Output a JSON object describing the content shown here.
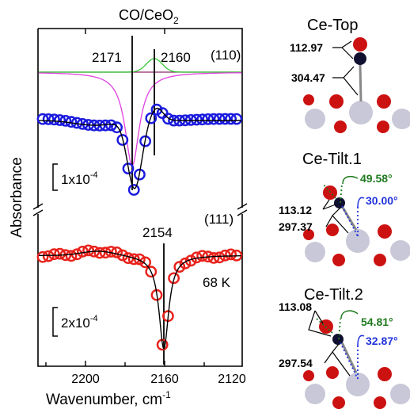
{
  "figure": {
    "title_main": "CO/CeO",
    "title_sub": "2",
    "ylabel": "Absorbance",
    "xlabel_main": "Wavenumber, cm",
    "xlabel_sup": "-1",
    "x_ticks": [
      "2200",
      "2160",
      "2120"
    ],
    "panel_110": {
      "label": "(110)",
      "line_left": "2171",
      "line_right": "2160",
      "scale_prefix": "1x10",
      "scale_exp": "-4"
    },
    "panel_111": {
      "label": "(111)",
      "line": "2154",
      "temperature": "68 K",
      "scale_prefix": "2x10",
      "scale_exp": "-4"
    },
    "structures": {
      "top": {
        "title": "Ce-Top",
        "bond_co": "112.97",
        "bond_ce": "304.47"
      },
      "tilt1": {
        "title": "Ce-Tilt.1",
        "bond_co": "113.12",
        "bond_ce": "297.37",
        "angle_green": "49.58°",
        "angle_blue": "30.00°"
      },
      "tilt2": {
        "title": "Ce-Tilt.2",
        "bond_co": "113.08",
        "bond_ce": "297.54",
        "angle_green": "54.81°",
        "angle_blue": "32.87°"
      }
    }
  },
  "colors": {
    "blue_markers": "#1a1adf",
    "red_markers": "#e8211a",
    "green_curve": "#33cc33",
    "magenta_curve": "#e040e0",
    "angle_green": "#1f7a1f",
    "angle_blue": "#2233dd",
    "ce_atom": "#c8c8d8",
    "o_atom": "#cc1111",
    "c_atom": "#101030"
  }
}
